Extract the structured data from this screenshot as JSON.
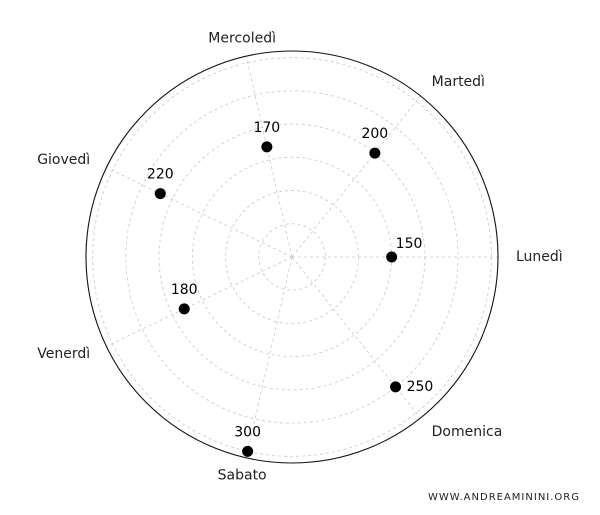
{
  "chart_data": {
    "type": "scatter",
    "projection": "polar",
    "categories": [
      "Lunedì",
      "Martedì",
      "Mercoledì",
      "Giovedì",
      "Venerdì",
      "Sabato",
      "Domenica"
    ],
    "values": [
      150,
      200,
      170,
      220,
      180,
      300,
      250
    ],
    "radial_range": [
      0,
      310
    ],
    "radial_ticks": [
      50,
      100,
      150,
      200,
      250,
      300
    ],
    "radial_tick_labels_visible": false,
    "grid": true,
    "title": "",
    "marker_color": "#000000",
    "grid_color": "#c8c8c8"
  },
  "watermark": "WWW.ANDREAMININI.ORG"
}
